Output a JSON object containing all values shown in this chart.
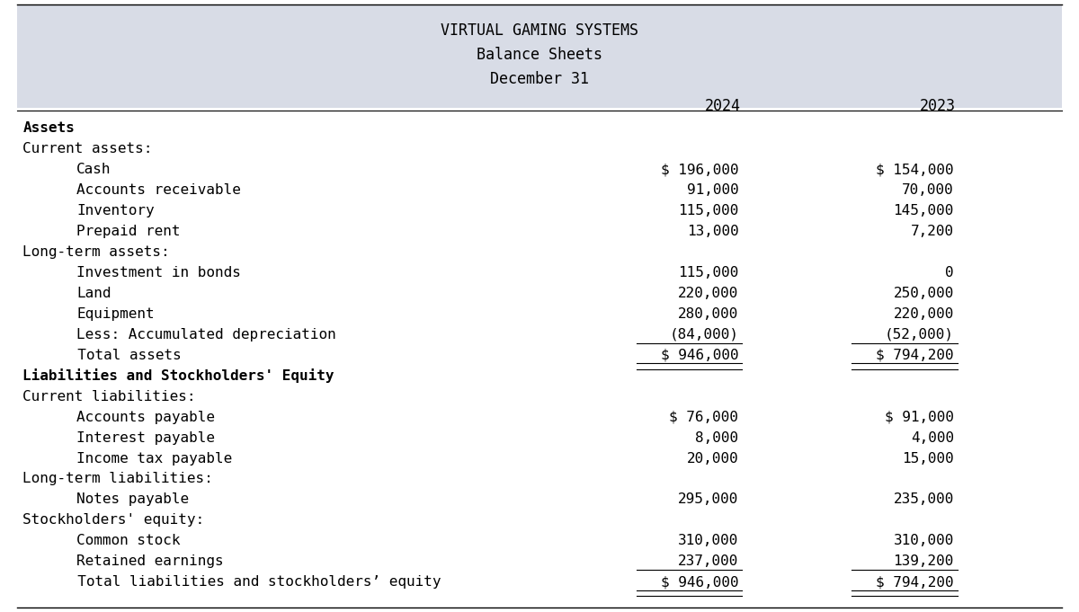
{
  "title1": "VIRTUAL GAMING SYSTEMS",
  "title2": "Balance Sheets",
  "title3": "December 31",
  "col_headers": [
    "2024",
    "2023"
  ],
  "header_bg": "#d8dce6",
  "rows": [
    {
      "label": "Assets",
      "val2024": "",
      "val2023": "",
      "style": "bold",
      "indent": 0
    },
    {
      "label": "Current assets:",
      "val2024": "",
      "val2023": "",
      "style": "normal",
      "indent": 0
    },
    {
      "label": "Cash",
      "val2024": "$ 196,000",
      "val2023": "$ 154,000",
      "style": "normal",
      "indent": 2
    },
    {
      "label": "Accounts receivable",
      "val2024": "91,000",
      "val2023": "70,000",
      "style": "normal",
      "indent": 2
    },
    {
      "label": "Inventory",
      "val2024": "115,000",
      "val2023": "145,000",
      "style": "normal",
      "indent": 2
    },
    {
      "label": "Prepaid rent",
      "val2024": "13,000",
      "val2023": "7,200",
      "style": "normal",
      "indent": 2
    },
    {
      "label": "Long-term assets:",
      "val2024": "",
      "val2023": "",
      "style": "normal",
      "indent": 0
    },
    {
      "label": "Investment in bonds",
      "val2024": "115,000",
      "val2023": "0",
      "style": "normal",
      "indent": 2
    },
    {
      "label": "Land",
      "val2024": "220,000",
      "val2023": "250,000",
      "style": "normal",
      "indent": 2
    },
    {
      "label": "Equipment",
      "val2024": "280,000",
      "val2023": "220,000",
      "style": "normal",
      "indent": 2
    },
    {
      "label": "Less: Accumulated depreciation",
      "val2024": "(84,000)",
      "val2023": "(52,000)",
      "style": "normal",
      "indent": 2,
      "underline": true
    },
    {
      "label": "  Total assets",
      "val2024": "$ 946,000",
      "val2023": "$ 794,200",
      "style": "normal",
      "indent": 1,
      "double_underline": true
    },
    {
      "label": "Liabilities and Stockholders' Equity",
      "val2024": "",
      "val2023": "",
      "style": "bold",
      "indent": 0
    },
    {
      "label": "Current liabilities:",
      "val2024": "",
      "val2023": "",
      "style": "normal",
      "indent": 0
    },
    {
      "label": "Accounts payable",
      "val2024": "$ 76,000",
      "val2023": "$ 91,000",
      "style": "normal",
      "indent": 2
    },
    {
      "label": "Interest payable",
      "val2024": "8,000",
      "val2023": "4,000",
      "style": "normal",
      "indent": 2
    },
    {
      "label": "Income tax payable",
      "val2024": "20,000",
      "val2023": "15,000",
      "style": "normal",
      "indent": 2
    },
    {
      "label": "Long-term liabilities:",
      "val2024": "",
      "val2023": "",
      "style": "normal",
      "indent": 0
    },
    {
      "label": "Notes payable",
      "val2024": "295,000",
      "val2023": "235,000",
      "style": "normal",
      "indent": 2
    },
    {
      "label": "Stockholders' equity:",
      "val2024": "",
      "val2023": "",
      "style": "normal",
      "indent": 0
    },
    {
      "label": "Common stock",
      "val2024": "310,000",
      "val2023": "310,000",
      "style": "normal",
      "indent": 2
    },
    {
      "label": "Retained earnings",
      "val2024": "237,000",
      "val2023": "139,200",
      "style": "normal",
      "indent": 2,
      "underline": true
    },
    {
      "label": "  Total liabilities and stockholders’ equity",
      "val2024": "$ 946,000",
      "val2023": "$ 794,200",
      "style": "normal",
      "indent": 1,
      "double_underline": true
    }
  ],
  "font_family": "monospace",
  "font_size": 11.5,
  "bg_color": "#ffffff",
  "header_font_size": 12
}
